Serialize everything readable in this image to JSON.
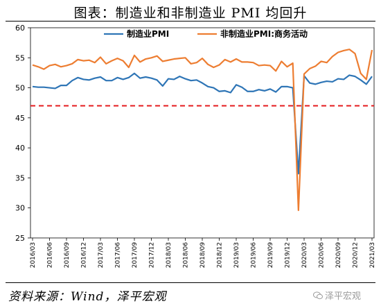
{
  "title": "图表：制造业和非制造业 PMI 均回升",
  "source": "资料来源：Wind，泽平宏观",
  "watermark": "泽平宏观",
  "colors": {
    "manufacturing": "#2e75b6",
    "non_manufacturing": "#ed7d31",
    "reference": "#e41a1c"
  },
  "chart_data": {
    "type": "line",
    "title": "图表：制造业和非制造业 PMI 均回升",
    "xlabel": "",
    "ylabel": "",
    "ylim": [
      25,
      60
    ],
    "yticks": [
      25,
      30,
      35,
      40,
      45,
      50,
      55,
      60
    ],
    "grid": false,
    "legend_position": "top",
    "x": [
      "2016/03",
      "2016/04",
      "2016/05",
      "2016/06",
      "2016/07",
      "2016/08",
      "2016/09",
      "2016/10",
      "2016/11",
      "2016/12",
      "2017/01",
      "2017/02",
      "2017/03",
      "2017/04",
      "2017/05",
      "2017/06",
      "2017/07",
      "2017/08",
      "2017/09",
      "2017/10",
      "2017/11",
      "2017/12",
      "2018/01",
      "2018/02",
      "2018/03",
      "2018/04",
      "2018/05",
      "2018/06",
      "2018/07",
      "2018/08",
      "2018/09",
      "2018/10",
      "2018/11",
      "2018/12",
      "2019/01",
      "2019/02",
      "2019/03",
      "2019/04",
      "2019/05",
      "2019/06",
      "2019/07",
      "2019/08",
      "2019/09",
      "2019/10",
      "2019/11",
      "2019/12",
      "2020/01",
      "2020/02",
      "2020/03",
      "2020/04",
      "2020/05",
      "2020/06",
      "2020/07",
      "2020/08",
      "2020/09",
      "2020/10",
      "2020/11",
      "2020/12",
      "2021/01",
      "2021/02",
      "2021/03"
    ],
    "xtick_labels": [
      "2016/03",
      "2016/06",
      "2016/09",
      "2016/12",
      "2017/03",
      "2017/06",
      "2017/09",
      "2017/12",
      "2018/03",
      "2018/06",
      "2018/09",
      "2018/12",
      "2019/03",
      "2019/06",
      "2019/09",
      "2019/12",
      "2020/03",
      "2020/06",
      "2020/09",
      "2020/12",
      "2021/03"
    ],
    "reference_line": {
      "value": 47,
      "style": "dashed"
    },
    "series": [
      {
        "name": "制造业PMI",
        "values": [
          50.2,
          50.1,
          50.1,
          50.0,
          49.9,
          50.4,
          50.4,
          51.2,
          51.7,
          51.4,
          51.3,
          51.6,
          51.8,
          51.2,
          51.2,
          51.7,
          51.4,
          51.7,
          52.4,
          51.6,
          51.8,
          51.6,
          51.3,
          50.3,
          51.5,
          51.4,
          51.9,
          51.5,
          51.2,
          51.3,
          50.8,
          50.2,
          50.0,
          49.4,
          49.5,
          49.2,
          50.5,
          50.1,
          49.4,
          49.4,
          49.7,
          49.5,
          49.8,
          49.3,
          50.2,
          50.2,
          50.0,
          35.7,
          52.0,
          50.8,
          50.6,
          50.9,
          51.1,
          51.0,
          51.5,
          51.4,
          52.1,
          51.9,
          51.3,
          50.6,
          51.9
        ]
      },
      {
        "name": "非制造业PMI:商务活动",
        "values": [
          53.8,
          53.5,
          53.1,
          53.7,
          53.9,
          53.5,
          53.7,
          54.0,
          54.7,
          54.5,
          54.6,
          54.2,
          55.1,
          54.0,
          54.5,
          54.9,
          54.5,
          53.4,
          55.4,
          54.3,
          54.8,
          55.0,
          55.3,
          54.4,
          54.6,
          54.8,
          54.9,
          55.0,
          54.0,
          54.2,
          54.9,
          53.9,
          53.4,
          53.8,
          54.7,
          54.3,
          54.8,
          54.3,
          54.3,
          54.2,
          53.7,
          53.8,
          53.7,
          52.8,
          54.4,
          53.5,
          54.1,
          29.6,
          52.3,
          53.2,
          53.6,
          54.4,
          54.2,
          55.2,
          55.9,
          56.2,
          56.4,
          55.7,
          52.4,
          51.4,
          56.3
        ]
      }
    ]
  }
}
